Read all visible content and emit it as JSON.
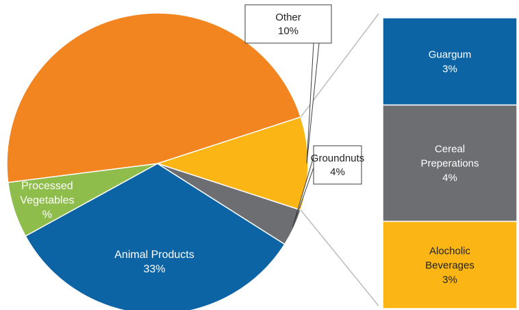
{
  "chart_data": {
    "type": "pie",
    "title": "",
    "slices": [
      {
        "label_lines": [
          "Animal Products",
          "33%"
        ],
        "value": 33,
        "color": "#0d64a4",
        "text_color": "#ffffff"
      },
      {
        "label_lines": [
          "Processed",
          "Vegetables",
          "%"
        ],
        "value": 6,
        "color": "#8fbd4c",
        "text_color": "#ffffff"
      },
      {
        "label_lines": [],
        "value": 47,
        "color": "#f28520",
        "text_color": "#ffffff"
      },
      {
        "label_lines": [
          "Other",
          "10%"
        ],
        "value": 10,
        "color": "#fbb615",
        "text_color": "#222222",
        "callout": true
      },
      {
        "label_lines": [
          "Groundnuts",
          "4%"
        ],
        "value": 4,
        "color": "#6d6e71",
        "text_color": "#222222",
        "callout": true
      }
    ],
    "breakdown_of": "Other",
    "breakdown": [
      {
        "label_lines": [
          "Guargum",
          "3%"
        ],
        "value": 3,
        "color": "#0d64a4",
        "text_color": "#ffffff"
      },
      {
        "label_lines": [
          "Cereal",
          "Preperations",
          "4%"
        ],
        "value": 4,
        "color": "#6d6e71",
        "text_color": "#ffffff"
      },
      {
        "label_lines": [
          "Alocholic",
          "Beverages",
          "3%"
        ],
        "value": 3,
        "color": "#fbb615",
        "text_color": "#222222"
      }
    ]
  }
}
